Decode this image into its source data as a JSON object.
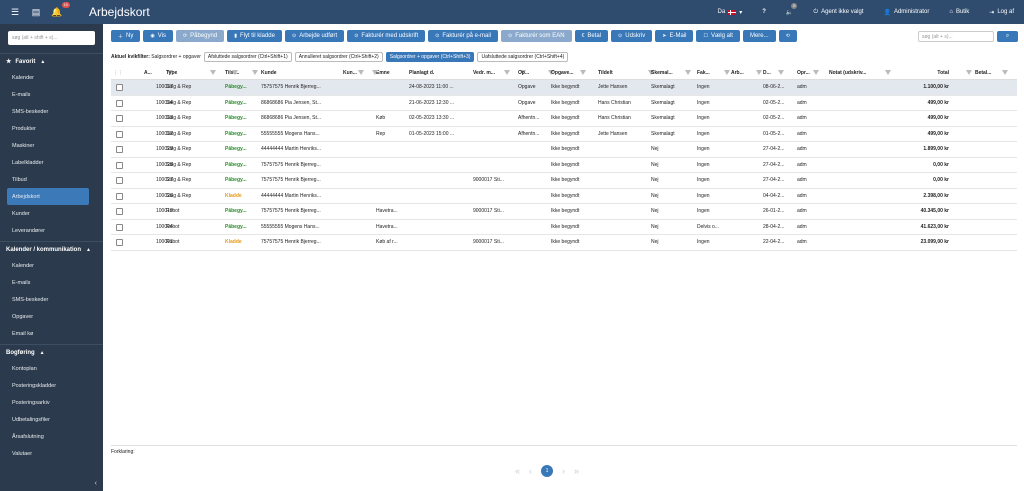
{
  "topbar": {
    "title": "Arbejdskort",
    "notification_count": "10",
    "language": "Da",
    "help_label": "?",
    "sound_badge": "0",
    "agent_label": "Agent ikke valgt",
    "user_label": "Administrator",
    "shop_label": "Butik",
    "logout_label": "Log af"
  },
  "sidebar": {
    "search_placeholder": "søg (alt + shift + s)...",
    "sections": [
      {
        "title": "Favorit",
        "items": [
          "Kalender",
          "E-mails",
          "SMS-beskeder",
          "Produkter",
          "Maskiner",
          "Labelkladder",
          "Tilbud",
          "Arbejdskort",
          "Kunder",
          "Leverandører"
        ]
      },
      {
        "title": "Kalender / kommunikation",
        "items": [
          "Kalender",
          "E-mails",
          "SMS-beskeder",
          "Opgaver",
          "Email kø"
        ]
      },
      {
        "title": "Bogføring",
        "items": [
          "Kontoplan",
          "Posteringskladder",
          "Posteringsarkiv",
          "Udbetalingsfiler",
          "Årsafslutning",
          "Valutaer"
        ]
      }
    ],
    "active_item": "Arbejdskort"
  },
  "toolbar": {
    "buttons": [
      "Ny",
      "Vis",
      "Påbegynd",
      "Flyt til kladde",
      "Arbejde udført",
      "Fakturér med udskrift",
      "Fakturér på e-mail",
      "Fakturér som EAN",
      "Betal",
      "Udskriv",
      "E-Mail",
      "Vælg alt",
      "Mere..."
    ],
    "search_placeholder": "søg (alt + s)..."
  },
  "filters": {
    "label": "Aktuel kvikfilter:",
    "current": "Salgsordrer + opgaver",
    "chips": [
      "Afsluttede salgsordrer (Ctrl+Shift+1)",
      "Annulleret salgsordrer (Ctrl+Shift+2)",
      "Salgsordrer + opgaver (Ctrl+Shift+3)",
      "Uafsluttede salgsordrer (Ctrl+Shift+4)"
    ],
    "active_chip": 2
  },
  "table": {
    "headers": [
      "A...",
      "Type",
      "Tilst...",
      "Kunde",
      "Kun...",
      "Emne",
      "Planlagt d.",
      "Vedr. m...",
      "Op...",
      "Opgave...",
      "Tildelt",
      "Skemal...",
      "Fak...",
      "Arb...",
      "D...",
      "Opr...",
      "Notat (udskriv...",
      "Total",
      "Betal..."
    ],
    "rows": [
      [
        "100037",
        "Salg & Rep",
        "Påbegy...",
        "75757575 Henrik Bjerreg...",
        "",
        "",
        "24-08-2023 11:00 ...",
        "",
        "Opgave",
        "Ikke begyndt",
        "Jette Hansen",
        "Skemalagt",
        "Ingen",
        "",
        "08-06-2...",
        "adm",
        "",
        "1.100,00 kr",
        ""
      ],
      [
        "100034",
        "Salg & Rep",
        "Påbegy...",
        "86868686 Pia Jensen, St...",
        "",
        "",
        "21-06-2023 12:30 ...",
        "",
        "Opgave",
        "Ikke begyndt",
        "Hans Christian",
        "Skemalagt",
        "Ingen",
        "",
        "02-05-2...",
        "adm",
        "",
        "499,00 kr",
        ""
      ],
      [
        "100033",
        "Salg & Rep",
        "Påbegy...",
        "86868686 Pia Jensen, St...",
        "",
        "Køb",
        "02-05-2023 13:30 ...",
        "",
        "Afhentn...",
        "Ikke begyndt",
        "Hans Christian",
        "Skemalagt",
        "Ingen",
        "",
        "02-05-2...",
        "adm",
        "",
        "499,00 kr",
        ""
      ],
      [
        "100032",
        "Salg & Rep",
        "Påbegy...",
        "55555555 Mogens Hans...",
        "",
        "Rep",
        "01-05-2023 15:00 ...",
        "",
        "Afhentn...",
        "Ikke begyndt",
        "Jette Hansen",
        "Skemalagt",
        "Ingen",
        "",
        "01-05-2...",
        "adm",
        "",
        "499,00 kr",
        ""
      ],
      [
        "100029",
        "Salg & Rep",
        "Påbegy...",
        "44444444 Martin Henriks...",
        "",
        "",
        "",
        "",
        "",
        "Ikke begyndt",
        "",
        "Nej",
        "Ingen",
        "",
        "27-04-2...",
        "adm",
        "",
        "1.899,00 kr",
        ""
      ],
      [
        "100028",
        "Salg & Rep",
        "Påbegy...",
        "75757575 Henrik Bjerreg...",
        "",
        "",
        "",
        "",
        "",
        "Ikke begyndt",
        "",
        "Nej",
        "Ingen",
        "",
        "27-04-2...",
        "adm",
        "",
        "0,00 kr",
        ""
      ],
      [
        "100027",
        "Salg & Rep",
        "Påbegy...",
        "75757575 Henrik Bjerreg...",
        "",
        "",
        "",
        "9000017 Sti...",
        "",
        "Ikke begyndt",
        "",
        "Nej",
        "Ingen",
        "",
        "27-04-2...",
        "adm",
        "",
        "0,00 kr",
        ""
      ],
      [
        "100026",
        "Salg & Rep",
        "Kladde",
        "44444444 Martin Henriks...",
        "",
        "",
        "",
        "",
        "",
        "Ikke begyndt",
        "",
        "Nej",
        "Ingen",
        "",
        "04-04-2...",
        "adm",
        "",
        "2.398,00 kr",
        ""
      ],
      [
        "100019",
        "Robot",
        "Påbegy...",
        "75757575 Henrik Bjerreg...",
        "",
        "Havetra...",
        "",
        "9000017 Sti...",
        "",
        "Ikke begyndt",
        "",
        "Nej",
        "Ingen",
        "",
        "26-01-2...",
        "adm",
        "",
        "40.345,00 kr",
        ""
      ],
      [
        "100004",
        "Robot",
        "Påbegy...",
        "55555555 Mogens Hans...",
        "",
        "Havetra...",
        "",
        "",
        "",
        "Ikke begyndt",
        "",
        "Nej",
        "Delvis o...",
        "",
        "28-04-2...",
        "adm",
        "",
        "41.623,00 kr",
        ""
      ],
      [
        "100001",
        "Robot",
        "Kladde",
        "75757575 Henrik Bjerreg...",
        "",
        "Køb af r...",
        "",
        "9000017 Sti...",
        "",
        "Ikke begyndt",
        "",
        "Nej",
        "Ingen",
        "",
        "22-04-2...",
        "adm",
        "",
        "23.099,00 kr",
        ""
      ]
    ],
    "selected_row": 0
  },
  "footer": {
    "forklaring_label": "Forklaring:",
    "current_page": "1"
  },
  "colors": {
    "topbar": "#2f4b6e",
    "sidebar": "#2b3a4c",
    "primary": "#3877b8",
    "status_started": "#2d8a2d",
    "status_draft": "#e39b1b"
  }
}
